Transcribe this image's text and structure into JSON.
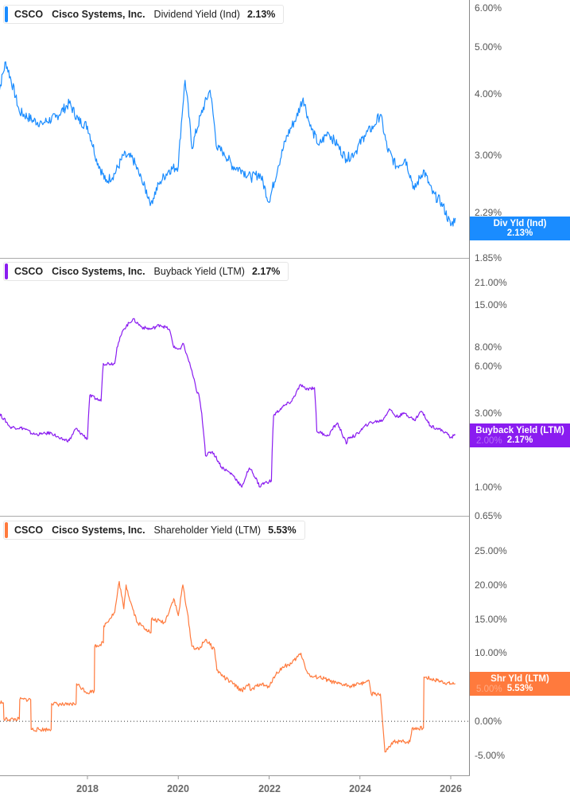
{
  "chart_data": [
    {
      "type": "line",
      "title": "CSCO Cisco Systems, Inc. Dividend Yield (Ind)",
      "ticker": "CSCO",
      "company": "Cisco Systems, Inc.",
      "metric": "Dividend Yield (Ind)",
      "current_value": "2.13%",
      "flag_label": "Div Yld (Ind)",
      "color": "#1a8cff",
      "y_scale": "log",
      "ylim": [
        1.85,
        6.2
      ],
      "yticks": [
        "6.00%",
        "5.00%",
        "4.00%",
        "3.00%",
        "2.29%",
        "1.85%"
      ],
      "x": [
        2016.0,
        2016.2,
        2016.5,
        2016.8,
        2017.0,
        2017.3,
        2017.6,
        2017.8,
        2018.0,
        2018.2,
        2018.4,
        2018.6,
        2018.8,
        2019.0,
        2019.2,
        2019.4,
        2019.6,
        2019.8,
        2020.0,
        2020.15,
        2020.3,
        2020.5,
        2020.7,
        2020.85,
        2021.0,
        2021.2,
        2021.4,
        2021.6,
        2021.8,
        2022.0,
        2022.2,
        2022.4,
        2022.6,
        2022.75,
        2022.9,
        2023.1,
        2023.3,
        2023.5,
        2023.7,
        2023.9,
        2024.1,
        2024.3,
        2024.45,
        2024.6,
        2024.8,
        2025.0,
        2025.2,
        2025.4,
        2025.6,
        2025.8,
        2026.0,
        2026.1
      ],
      "values": [
        3.75,
        4.6,
        3.6,
        3.45,
        3.4,
        3.5,
        3.75,
        3.45,
        3.35,
        2.85,
        2.55,
        2.65,
        2.9,
        2.85,
        2.55,
        2.3,
        2.55,
        2.7,
        2.75,
        4.2,
        3.0,
        3.55,
        4.0,
        3.0,
        2.95,
        2.75,
        2.7,
        2.6,
        2.65,
        2.3,
        2.75,
        3.2,
        3.5,
        3.85,
        3.35,
        3.05,
        3.25,
        3.05,
        2.85,
        2.95,
        3.2,
        3.35,
        3.55,
        3.0,
        2.75,
        2.85,
        2.45,
        2.7,
        2.4,
        2.3,
        2.05,
        2.13
      ]
    },
    {
      "type": "line",
      "title": "CSCO Cisco Systems, Inc. Buyback Yield (LTM)",
      "ticker": "CSCO",
      "company": "Cisco Systems, Inc.",
      "metric": "Buyback Yield (LTM)",
      "current_value": "2.17%",
      "flag_label": "Buyback Yield (LTM)",
      "flag_ghost": "2.00%",
      "color": "#8a1cf0",
      "y_scale": "log",
      "ylim": [
        0.65,
        25
      ],
      "yticks": [
        "21.00%",
        "15.00%",
        "8.00%",
        "6.00%",
        "3.00%",
        "1.00%",
        "0.65%"
      ],
      "x": [
        2016.0,
        2016.05,
        2016.3,
        2016.6,
        2016.8,
        2017.0,
        2017.2,
        2017.4,
        2017.6,
        2017.75,
        2017.8,
        2018.0,
        2018.05,
        2018.3,
        2018.35,
        2018.6,
        2018.65,
        2018.8,
        2019.0,
        2019.2,
        2019.4,
        2019.6,
        2019.8,
        2019.9,
        2020.05,
        2020.1,
        2020.2,
        2020.4,
        2020.45,
        2020.6,
        2020.75,
        2020.95,
        2021.2,
        2021.4,
        2021.55,
        2021.6,
        2021.8,
        2021.85,
        2022.05,
        2022.1,
        2022.3,
        2022.5,
        2022.7,
        2022.8,
        2023.0,
        2023.05,
        2023.3,
        2023.5,
        2023.7,
        2023.75,
        2023.9,
        2024.2,
        2024.5,
        2024.65,
        2024.8,
        2025.0,
        2025.2,
        2025.35,
        2025.55,
        2025.7,
        2025.9,
        2026.0,
        2026.1
      ],
      "values": [
        2.6,
        3.0,
        2.45,
        2.4,
        2.2,
        2.2,
        2.25,
        2.05,
        2.0,
        2.4,
        2.3,
        2.05,
        3.9,
        3.6,
        6.3,
        6.3,
        8.0,
        10.5,
        12.2,
        10.8,
        10.5,
        11.2,
        10.5,
        8.0,
        7.8,
        8.5,
        7.0,
        4.2,
        4.0,
        1.6,
        1.7,
        1.35,
        1.2,
        1.0,
        1.3,
        1.3,
        1.0,
        1.05,
        1.1,
        2.9,
        3.3,
        3.6,
        4.6,
        4.3,
        4.4,
        2.3,
        2.15,
        2.6,
        1.9,
        2.1,
        2.15,
        2.6,
        2.7,
        3.2,
        2.85,
        3.0,
        2.7,
        3.1,
        2.5,
        2.4,
        2.25,
        2.1,
        2.17
      ]
    },
    {
      "type": "line",
      "title": "CSCO Cisco Systems, Inc. Shareholder Yield (LTM)",
      "ticker": "CSCO",
      "company": "Cisco Systems, Inc.",
      "metric": "Shareholder Yield (LTM)",
      "current_value": "5.53%",
      "flag_label": "Shr Yld (LTM)",
      "flag_ghost": "5.00%",
      "color": "#ff7a3d",
      "y_scale": "linear",
      "ylim": [
        -8.5,
        30
      ],
      "yticks": [
        "25.00%",
        "20.00%",
        "15.00%",
        "10.00%",
        "5.00%",
        "0.00%",
        "-5.00%"
      ],
      "zero_line": true,
      "x": [
        2016.0,
        2016.15,
        2016.16,
        2016.5,
        2016.51,
        2016.75,
        2016.76,
        2017.2,
        2017.21,
        2017.55,
        2017.75,
        2017.76,
        2018.0,
        2018.15,
        2018.16,
        2018.35,
        2018.36,
        2018.6,
        2018.7,
        2018.8,
        2018.85,
        2018.95,
        2019.1,
        2019.3,
        2019.4,
        2019.41,
        2019.7,
        2019.9,
        2020.0,
        2020.1,
        2020.2,
        2020.3,
        2020.45,
        2020.6,
        2020.8,
        2020.85,
        2021.0,
        2021.2,
        2021.4,
        2021.55,
        2021.6,
        2021.8,
        2022.0,
        2022.1,
        2022.3,
        2022.5,
        2022.7,
        2022.85,
        2022.95,
        2023.1,
        2023.3,
        2023.5,
        2023.8,
        2024.0,
        2024.2,
        2024.25,
        2024.45,
        2024.55,
        2024.56,
        2024.75,
        2024.8,
        2025.1,
        2025.15,
        2025.4,
        2025.41,
        2025.7,
        2026.0,
        2026.1
      ],
      "values": [
        3.0,
        2.7,
        0.3,
        0.3,
        3.2,
        3.2,
        -1.2,
        -1.2,
        2.6,
        2.4,
        2.6,
        5.5,
        4.2,
        4.5,
        11.0,
        11.5,
        14.0,
        16.0,
        20.5,
        16.5,
        20.0,
        17.5,
        14.5,
        13.5,
        13.0,
        15.0,
        14.5,
        18.0,
        15.5,
        20.0,
        16.0,
        11.0,
        10.5,
        12.0,
        10.5,
        7.5,
        6.5,
        5.5,
        4.5,
        5.5,
        4.5,
        5.5,
        5.0,
        6.5,
        8.0,
        8.5,
        10.0,
        7.0,
        6.5,
        6.5,
        6.0,
        5.5,
        5.2,
        5.5,
        6.0,
        4.0,
        4.0,
        -4.5,
        -4.5,
        -3.0,
        -3.0,
        -3.0,
        -1.0,
        -1.0,
        6.5,
        6.0,
        5.5,
        5.53
      ]
    }
  ],
  "x_axis": {
    "ticks": [
      "2018",
      "2020",
      "2022",
      "2024",
      "2026"
    ],
    "tick_years": [
      2018,
      2020,
      2022,
      2024,
      2026
    ],
    "range": [
      2016.0,
      2026.5
    ]
  }
}
